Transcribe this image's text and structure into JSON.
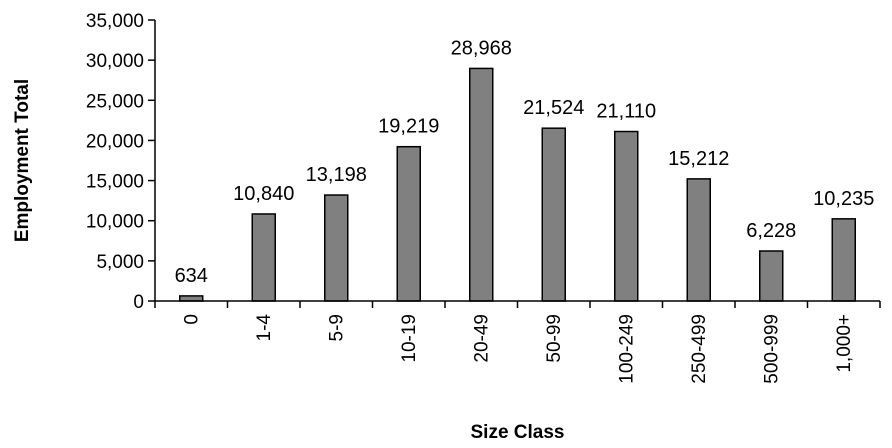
{
  "chart_data": {
    "type": "bar",
    "title": "",
    "xlabel": "Size Class",
    "ylabel": "Employment Total",
    "categories": [
      "0",
      "1-4",
      "5-9",
      "10-19",
      "20-49",
      "50-99",
      "100-249",
      "250-499",
      "500-999",
      "1,000+"
    ],
    "values": [
      634,
      10840,
      13198,
      19219,
      28968,
      21524,
      21110,
      15212,
      6228,
      10235
    ],
    "value_labels": [
      "634",
      "10,840",
      "13,198",
      "19,219",
      "28,968",
      "21,524",
      "21,110",
      "15,212",
      "6,228",
      "10,235"
    ],
    "ylim": [
      0,
      35000
    ],
    "yticks": [
      0,
      5000,
      10000,
      15000,
      20000,
      25000,
      30000,
      35000
    ],
    "ytick_labels": [
      "0",
      "5,000",
      "10,000",
      "15,000",
      "20,000",
      "25,000",
      "30,000",
      "35,000"
    ],
    "grid": false,
    "legend": "none",
    "bar_color": "#808080",
    "bar_edge_color": "#000000"
  }
}
